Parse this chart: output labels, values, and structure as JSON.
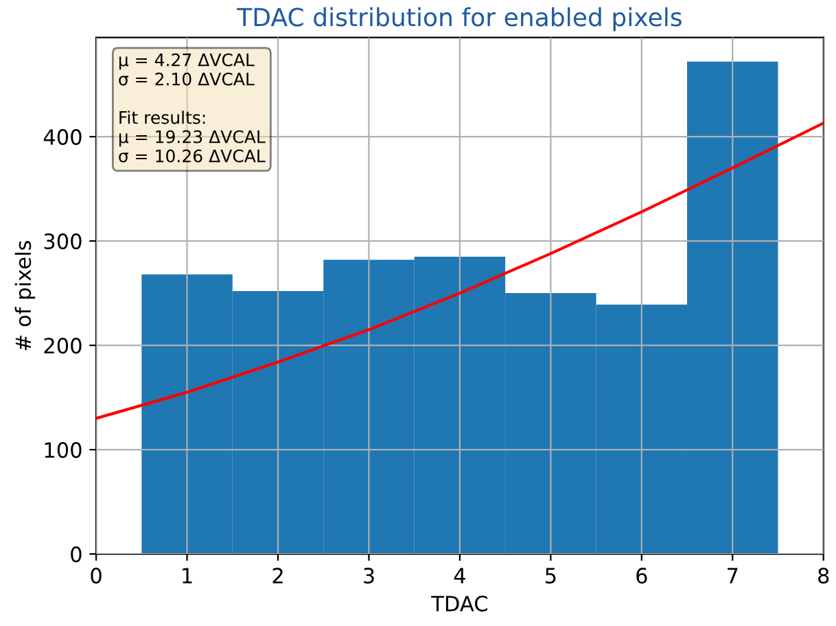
{
  "chart_data": {
    "type": "histogram",
    "title": "TDAC distribution for enabled pixels",
    "xlabel": "TDAC",
    "ylabel": "# of pixels",
    "bins": [
      0.5,
      1.5,
      2.5,
      3.5,
      4.5,
      5.5,
      6.5,
      7.5
    ],
    "values": [
      268,
      252,
      282,
      285,
      250,
      239,
      472
    ],
    "color": "#1f77b4",
    "series": [
      {
        "type": "line",
        "color": "#ff0000",
        "x": [
          0,
          1,
          2,
          3,
          4,
          5,
          6,
          7,
          8
        ],
        "values": [
          130,
          155,
          184,
          215,
          250,
          288,
          328,
          370,
          413
        ]
      }
    ],
    "annotations": [
      "μ = 4.27 ΔVCAL\nσ = 2.10 ΔVCAL\n\nFit results:\nμ = 19.23 ΔVCAL\nσ = 10.26 ΔVCAL"
    ],
    "xlim": [
      0,
      8
    ],
    "ylim": [
      0,
      495
    ],
    "xticks": [
      0,
      1,
      2,
      3,
      4,
      5,
      6,
      7,
      8
    ],
    "yticks": [
      0,
      100,
      200,
      300,
      400
    ],
    "grid": true
  }
}
